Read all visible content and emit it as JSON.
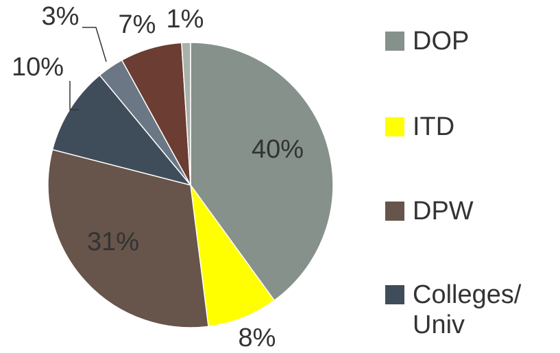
{
  "chart_data": {
    "type": "pie",
    "categories": [
      "DOP",
      "ITD",
      "DPW",
      "Colleges/ Univ",
      null,
      null,
      null
    ],
    "values": [
      40,
      8,
      31,
      10,
      3,
      7,
      1
    ],
    "value_labels": [
      "40%",
      "8%",
      "31%",
      "10%",
      "3%",
      "7%",
      "1%"
    ],
    "colors": [
      "#85918a",
      "#ffff00",
      "#67544b",
      "#3f4d5a",
      "#6b7785",
      "#6b3d33",
      "#aab1aa"
    ],
    "legend": "right"
  }
}
